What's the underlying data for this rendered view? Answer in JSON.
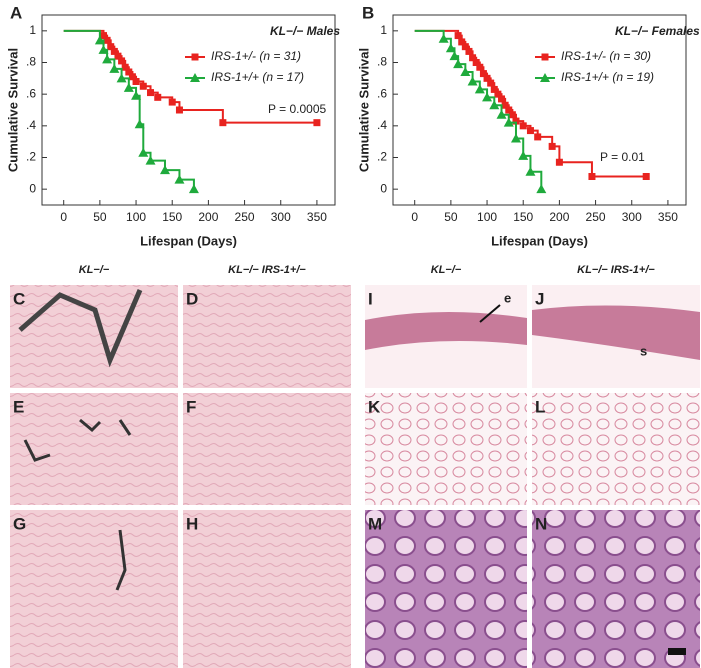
{
  "chart_data": [
    {
      "type": "step",
      "panel": "A",
      "title": "KL−/− Males",
      "xlabel": "Lifespan (Days)",
      "ylabel": "Cumulative Survival",
      "annotation": "P = 0.0005",
      "xlim": [
        -30,
        375
      ],
      "xticks": [
        0,
        50,
        100,
        150,
        200,
        250,
        300,
        350
      ],
      "ylim": [
        -0.1,
        1.1
      ],
      "yticks": [
        0,
        {
          "value": 0.2,
          "label": ".2"
        },
        {
          "value": 0.4,
          "label": ".4"
        },
        {
          "value": 0.6,
          "label": ".6"
        },
        {
          "value": 0.8,
          "label": ".8"
        },
        1
      ],
      "series": [
        {
          "name": "IRS-1+/- (n = 31)",
          "color": "#e8231f",
          "marker": "square",
          "x": [
            0,
            55,
            60,
            65,
            70,
            75,
            80,
            85,
            90,
            95,
            100,
            110,
            120,
            130,
            150,
            160,
            220,
            350
          ],
          "values": [
            1,
            0.97,
            0.94,
            0.9,
            0.87,
            0.84,
            0.81,
            0.77,
            0.74,
            0.71,
            0.68,
            0.65,
            0.61,
            0.58,
            0.55,
            0.5,
            0.42,
            0.42
          ]
        },
        {
          "name": "IRS-1+/+ (n = 17)",
          "color": "#1faa3c",
          "marker": "triangle",
          "x": [
            0,
            50,
            55,
            60,
            70,
            80,
            90,
            100,
            105,
            110,
            120,
            140,
            160,
            180
          ],
          "values": [
            1,
            0.94,
            0.88,
            0.82,
            0.76,
            0.7,
            0.64,
            0.59,
            0.41,
            0.23,
            0.18,
            0.12,
            0.06,
            0
          ]
        }
      ]
    },
    {
      "type": "step",
      "panel": "B",
      "title": "KL−/− Females",
      "xlabel": "Lifespan (Days)",
      "ylabel": "Cumulative Survival",
      "annotation": "P = 0.01",
      "xlim": [
        -30,
        375
      ],
      "xticks": [
        0,
        50,
        100,
        150,
        200,
        250,
        300,
        350
      ],
      "ylim": [
        -0.1,
        1.1
      ],
      "yticks": [
        0,
        {
          "value": 0.2,
          "label": ".2"
        },
        {
          "value": 0.4,
          "label": ".4"
        },
        {
          "value": 0.6,
          "label": ".6"
        },
        {
          "value": 0.8,
          "label": ".8"
        },
        1
      ],
      "series": [
        {
          "name": "IRS-1+/- (n = 30)",
          "color": "#e8231f",
          "marker": "square",
          "x": [
            0,
            60,
            65,
            70,
            75,
            80,
            85,
            90,
            95,
            100,
            105,
            110,
            115,
            120,
            125,
            130,
            135,
            140,
            150,
            160,
            170,
            190,
            200,
            245,
            320
          ],
          "values": [
            1,
            0.97,
            0.93,
            0.9,
            0.87,
            0.83,
            0.8,
            0.77,
            0.73,
            0.7,
            0.67,
            0.63,
            0.6,
            0.57,
            0.53,
            0.5,
            0.47,
            0.43,
            0.4,
            0.37,
            0.33,
            0.27,
            0.17,
            0.08,
            0.08
          ]
        },
        {
          "name": "IRS-1+/+ (n = 19)",
          "color": "#1faa3c",
          "marker": "triangle",
          "x": [
            0,
            40,
            50,
            55,
            60,
            70,
            80,
            90,
            100,
            110,
            120,
            130,
            140,
            150,
            160,
            175
          ],
          "values": [
            1,
            0.95,
            0.89,
            0.84,
            0.79,
            0.74,
            0.68,
            0.63,
            0.58,
            0.53,
            0.47,
            0.42,
            0.32,
            0.21,
            0.11,
            0
          ]
        }
      ]
    }
  ],
  "column_headers": [
    "KL−/−",
    "KL−/− IRS-1+/−",
    "KL−/−",
    "KL−/− IRS-1+/−"
  ],
  "panels": [
    "C",
    "D",
    "E",
    "F",
    "G",
    "H",
    "I",
    "J",
    "K",
    "L",
    "M",
    "N"
  ],
  "annotations": [
    "e",
    "s"
  ]
}
